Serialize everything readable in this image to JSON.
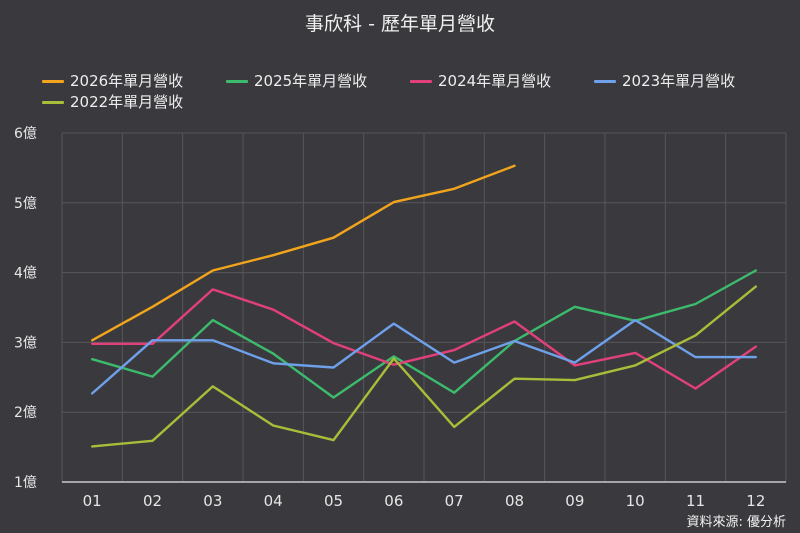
{
  "title": "事欣科 - 歷年單月營收",
  "source": "資料來源: 優分析",
  "colors": {
    "background": "#3a3a3e",
    "grid": "#56565b",
    "axis": "#c9c9c9"
  },
  "chart_data": {
    "type": "line",
    "title": "事欣科 - 歷年單月營收",
    "categories": [
      "01",
      "02",
      "03",
      "04",
      "05",
      "06",
      "07",
      "08",
      "09",
      "10",
      "11",
      "12"
    ],
    "ylim": [
      1,
      6
    ],
    "yticks": [
      {
        "value": 1,
        "label": "1億"
      },
      {
        "value": 2,
        "label": "2億"
      },
      {
        "value": 3,
        "label": "3億"
      },
      {
        "value": 4,
        "label": "4億"
      },
      {
        "value": 5,
        "label": "5億"
      },
      {
        "value": 6,
        "label": "6億"
      }
    ],
    "grid": true,
    "legend_position": "top-left",
    "series": [
      {
        "name": "2026年單月營收",
        "color": "#f2a51c",
        "values": [
          3.03,
          3.51,
          4.03,
          4.25,
          4.5,
          5.01,
          5.2,
          5.53,
          null,
          null,
          null,
          null
        ]
      },
      {
        "name": "2025年單月營收",
        "color": "#3dbb6c",
        "values": [
          2.76,
          2.51,
          3.32,
          2.84,
          2.21,
          2.8,
          2.28,
          3.02,
          3.51,
          3.31,
          3.55,
          4.03
        ]
      },
      {
        "name": "2024年單月營收",
        "color": "#e2407a",
        "values": [
          2.98,
          2.98,
          3.76,
          3.47,
          2.99,
          2.68,
          2.89,
          3.3,
          2.67,
          2.85,
          2.34,
          2.94
        ]
      },
      {
        "name": "2023年單月營收",
        "color": "#6fa0ea",
        "values": [
          2.27,
          3.03,
          3.03,
          2.7,
          2.64,
          3.27,
          2.71,
          3.02,
          2.71,
          3.32,
          2.79,
          2.79
        ]
      },
      {
        "name": "2022年單月營收",
        "color": "#a9bd38",
        "values": [
          1.51,
          1.59,
          2.37,
          1.81,
          1.6,
          2.77,
          1.79,
          2.48,
          2.46,
          2.67,
          3.1,
          3.8
        ]
      }
    ]
  }
}
